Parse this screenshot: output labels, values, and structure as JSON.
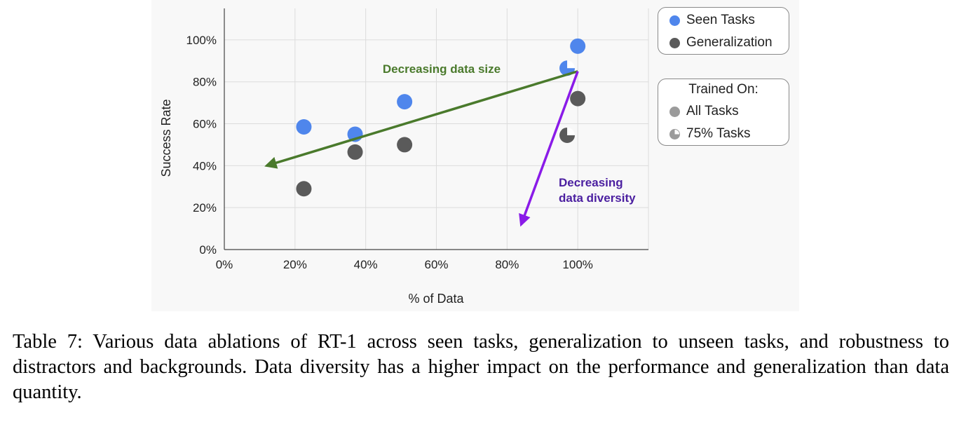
{
  "chart_data": {
    "type": "scatter",
    "xlabel": "% of Data",
    "ylabel": "Success Rate",
    "xlim": [
      0,
      120
    ],
    "ylim": [
      0,
      115
    ],
    "x_ticks": [
      "0%",
      "20%",
      "40%",
      "60%",
      "80%",
      "100%"
    ],
    "y_ticks": [
      "0%",
      "20%",
      "40%",
      "60%",
      "80%",
      "100%"
    ],
    "grid": true,
    "series": [
      {
        "name": "Seen Tasks",
        "color": "#4f86ec",
        "points": [
          {
            "x": 22.5,
            "y": 58.5,
            "trained_on": "All Tasks"
          },
          {
            "x": 37,
            "y": 55,
            "trained_on": "All Tasks"
          },
          {
            "x": 51,
            "y": 70.5,
            "trained_on": "All Tasks"
          },
          {
            "x": 97,
            "y": 86.5,
            "trained_on": "75% Tasks"
          },
          {
            "x": 100,
            "y": 97,
            "trained_on": "All Tasks"
          }
        ]
      },
      {
        "name": "Generalization",
        "color": "#5a5a5a",
        "points": [
          {
            "x": 22.5,
            "y": 29,
            "trained_on": "All Tasks"
          },
          {
            "x": 37,
            "y": 46.5,
            "trained_on": "All Tasks"
          },
          {
            "x": 51,
            "y": 50,
            "trained_on": "All Tasks"
          },
          {
            "x": 97,
            "y": 54.5,
            "trained_on": "75% Tasks"
          },
          {
            "x": 100,
            "y": 72,
            "trained_on": "All Tasks"
          }
        ]
      }
    ],
    "annotations": [
      {
        "text": "Decreasing data size",
        "color": "#4a7a2c",
        "arrow": {
          "from": [
            100,
            85
          ],
          "to": [
            12,
            40
          ]
        }
      },
      {
        "text_lines": [
          "Decreasing",
          "data diversity"
        ],
        "color": "#4b1fa0",
        "arrow_color": "#8a1be8",
        "arrow": {
          "from": [
            100,
            85
          ],
          "to": [
            84,
            12
          ]
        }
      }
    ],
    "legend": {
      "placement": "right",
      "series_entries": [
        "Seen Tasks",
        "Generalization"
      ],
      "trained_on_title": "Trained On:",
      "trained_on_entries": [
        "All Tasks",
        "75% Tasks"
      ]
    }
  },
  "caption": "Table 7: Various data ablations of RT-1 across seen tasks, generalization to unseen tasks, and robustness to distractors and backgrounds. Data diversity has a higher impact on the performance and generalization than data quantity."
}
